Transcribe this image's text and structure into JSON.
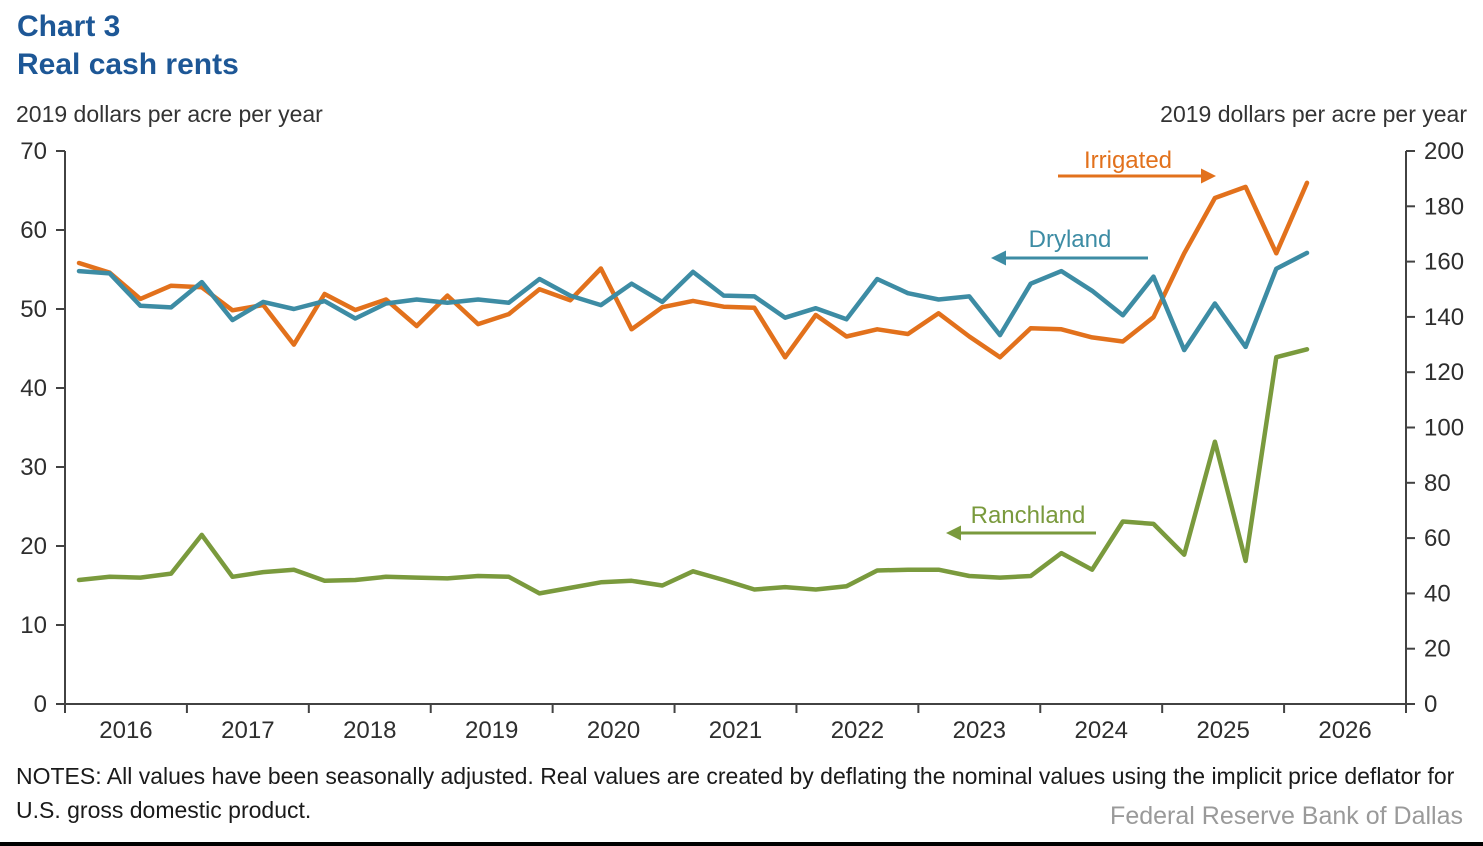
{
  "chart_data": {
    "type": "line",
    "title": "Chart 3",
    "subtitle": "Real cash rents",
    "left_axis": {
      "label": "2019 dollars per acre per year",
      "min": 0,
      "max": 70,
      "ticks": [
        70,
        60,
        50,
        40,
        30,
        20,
        10,
        0
      ]
    },
    "right_axis": {
      "label": "2019 dollars per acre per year",
      "min": 0,
      "max": 200,
      "ticks": [
        200,
        180,
        160,
        140,
        120,
        100,
        80,
        60,
        40,
        20,
        0
      ]
    },
    "x_axis": {
      "year_labels": [
        "2016",
        "2017",
        "2018",
        "2019",
        "2020",
        "2021",
        "2022",
        "2023",
        "2024",
        "2025",
        "2026"
      ]
    },
    "x": [
      "2015 Q4",
      "2016 Q1",
      "2016 Q2",
      "2016 Q3",
      "2016 Q4",
      "2017 Q1",
      "2017 Q2",
      "2017 Q3",
      "2017 Q4",
      "2018 Q1",
      "2018 Q2",
      "2018 Q3",
      "2018 Q4",
      "2019 Q1",
      "2019 Q2",
      "2019 Q3",
      "2019 Q4",
      "2020 Q1",
      "2020 Q2",
      "2020 Q3",
      "2020 Q4",
      "2021 Q1",
      "2021 Q2",
      "2021 Q3",
      "2021 Q4",
      "2022 Q1",
      "2022 Q2",
      "2022 Q3",
      "2022 Q4",
      "2023 Q1",
      "2023 Q2",
      "2023 Q3",
      "2023 Q4",
      "2024 Q1",
      "2024 Q2",
      "2024 Q3",
      "2024 Q4",
      "2025 Q1",
      "2025 Q2",
      "2025 Q3",
      "2025 Q4"
    ],
    "series": [
      {
        "name": "Irrigated",
        "axis": "right",
        "color": "#e2711c",
        "values": [
          159.5,
          156,
          146.5,
          151.3,
          150.7,
          142.4,
          144.3,
          130,
          148.3,
          142.5,
          146.3,
          136.7,
          147.7,
          137.4,
          141,
          150,
          146,
          157.5,
          135.5,
          143.5,
          145.8,
          143.7,
          143.3,
          125.4,
          140.7,
          132.9,
          135.5,
          133.8,
          141.3,
          132.9,
          125.4,
          135.9,
          135.5,
          132.6,
          131.1,
          139.9,
          163,
          183,
          187,
          163,
          188.5
        ]
      },
      {
        "name": "Dryland",
        "axis": "left",
        "color": "#3d8ca4",
        "values": [
          54.8,
          54.5,
          50.4,
          50.2,
          53.4,
          48.6,
          50.9,
          50,
          51,
          48.8,
          50.7,
          51.2,
          50.8,
          51.2,
          50.8,
          53.8,
          51.7,
          50.5,
          53.2,
          50.9,
          54.7,
          51.7,
          51.6,
          48.9,
          50.1,
          48.7,
          53.8,
          52,
          51.2,
          51.6,
          46.7,
          53.2,
          54.8,
          52.3,
          49.2,
          54.1,
          44.8,
          50.7,
          45.2,
          55.1,
          57.1
        ]
      },
      {
        "name": "Ranchland",
        "axis": "left",
        "color": "#7a9a3d",
        "values": [
          15.7,
          16.1,
          16,
          16.5,
          21.4,
          16.1,
          16.7,
          17,
          15.6,
          15.7,
          16.1,
          16,
          15.9,
          16.2,
          16.1,
          14,
          14.7,
          15.4,
          15.6,
          15,
          16.8,
          15.7,
          14.5,
          14.8,
          14.5,
          14.9,
          16.9,
          17,
          17,
          16.2,
          16,
          16.2,
          19.1,
          17,
          23.1,
          22.8,
          18.9,
          33.2,
          18.1,
          43.9,
          44.9
        ]
      }
    ],
    "legend_position": "annotations-with-arrows",
    "grid": false,
    "notes": "NOTES: All values have been seasonally adjusted. Real values are created by deflating the nominal values using the implicit price deflator for U.S. gross domestic product.",
    "source": "Federal Reserve Bank of Dallas"
  }
}
